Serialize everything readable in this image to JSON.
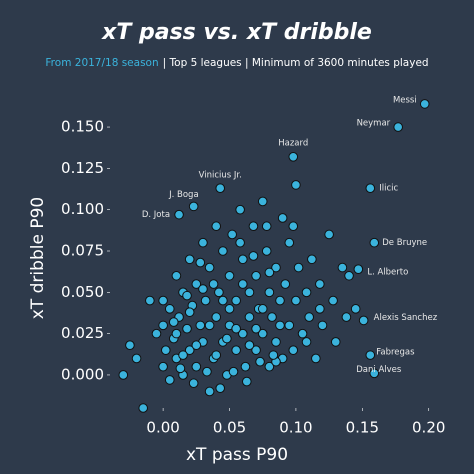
{
  "chart_data": {
    "type": "scatter",
    "title": "xT pass vs. xT dribble",
    "subtitle_highlight": "From 2017/18 season",
    "subtitle": "| Top 5 leagues | Minimum of 3600 minutes played",
    "xlabel": "xT pass P90",
    "ylabel": "xT dribble P90",
    "color": "#3bb3dc",
    "xlim": [
      -0.04,
      0.21
    ],
    "ylim": [
      -0.02,
      0.17
    ],
    "xticks": [
      {
        "value": 0,
        "label": "0.00"
      },
      {
        "value": 0.05,
        "label": "0.05"
      },
      {
        "value": 0.1,
        "label": "0.10"
      },
      {
        "value": 0.15,
        "label": "0.15"
      },
      {
        "value": 0.2,
        "label": "0.20"
      }
    ],
    "yticks": [
      {
        "value": 0,
        "label": "0.000"
      },
      {
        "value": 0.025,
        "label": "0.025"
      },
      {
        "value": 0.05,
        "label": "0.050"
      },
      {
        "value": 0.075,
        "label": "0.075"
      },
      {
        "value": 0.1,
        "label": "0.100"
      },
      {
        "value": 0.125,
        "label": "0.125"
      },
      {
        "value": 0.15,
        "label": "0.150"
      }
    ],
    "x": [
      -0.03,
      -0.025,
      -0.02,
      -0.015,
      -0.01,
      -0.005,
      0.0,
      0.0,
      0.002,
      0.005,
      0.005,
      0.008,
      0.01,
      0.01,
      0.012,
      0.015,
      0.015,
      0.018,
      0.02,
      0.02,
      0.022,
      0.025,
      0.025,
      0.028,
      0.03,
      0.03,
      0.032,
      0.035,
      0.035,
      0.038,
      0.04,
      0.04,
      0.042,
      0.045,
      0.045,
      0.048,
      0.05,
      0.05,
      0.052,
      0.055,
      0.055,
      0.058,
      0.06,
      0.06,
      0.062,
      0.065,
      0.065,
      0.068,
      0.07,
      0.07,
      0.072,
      0.075,
      0.075,
      0.078,
      0.08,
      0.08,
      0.082,
      0.085,
      0.085,
      0.088,
      0.09,
      0.09,
      0.092,
      0.095,
      0.095,
      0.098,
      0.1,
      0.1,
      0.102,
      0.105,
      0.108,
      0.11,
      0.112,
      0.115,
      0.118,
      0.12,
      0.125,
      0.128,
      0.13,
      0.135,
      0.138,
      0.14,
      0.145,
      0.0,
      0.01,
      0.02,
      0.03,
      0.04,
      0.05,
      0.06,
      0.07,
      0.08,
      0.045,
      0.035,
      0.025,
      0.015,
      0.055,
      0.065,
      0.075,
      0.085,
      0.048,
      0.038,
      0.028,
      0.018,
      0.008,
      0.058,
      0.068,
      0.078,
      0.088,
      0.098,
      0.108,
      0.118,
      0.013,
      0.023,
      0.033,
      0.043,
      0.053,
      0.063,
      0.073,
      0.083
    ],
    "y": [
      0.0,
      0.018,
      0.01,
      -0.02,
      0.045,
      0.025,
      0.005,
      0.03,
      0.015,
      0.04,
      -0.003,
      0.022,
      0.06,
      0.01,
      0.035,
      0.0,
      0.05,
      0.028,
      0.07,
      0.015,
      0.042,
      0.005,
      0.055,
      0.03,
      0.08,
      0.02,
      0.045,
      -0.01,
      0.065,
      0.01,
      0.035,
      0.09,
      0.05,
      0.02,
      0.075,
      0.0,
      0.06,
      0.03,
      0.085,
      0.015,
      0.045,
      0.1,
      0.025,
      0.07,
      0.005,
      0.05,
      0.035,
      0.09,
      0.015,
      0.06,
      0.04,
      0.105,
      0.025,
      0.075,
      0.005,
      0.05,
      0.035,
      0.065,
      0.02,
      0.045,
      0.095,
      0.01,
      0.055,
      0.03,
      0.08,
      0.015,
      0.115,
      0.045,
      0.065,
      0.025,
      0.05,
      0.035,
      0.07,
      0.01,
      0.055,
      0.03,
      0.085,
      0.045,
      0.02,
      0.065,
      0.035,
      0.06,
      0.04,
      0.045,
      0.025,
      0.038,
      0.052,
      0.012,
      0.04,
      0.055,
      0.028,
      0.062,
      0.045,
      0.03,
      0.018,
      0.012,
      0.028,
      0.018,
      0.04,
      0.008,
      0.022,
      0.055,
      0.068,
      0.048,
      0.032,
      0.08,
      0.072,
      0.09,
      0.03,
      0.09,
      0.02,
      0.04,
      0.004,
      -0.005,
      0.002,
      -0.008,
      0.002,
      -0.004,
      0.008,
      0.012
    ],
    "annotations": [
      {
        "text": "Messi",
        "x": 0.197,
        "y": 0.164
      },
      {
        "text": "Neymar",
        "x": 0.177,
        "y": 0.15
      },
      {
        "text": "Hazard",
        "x": 0.098,
        "y": 0.132
      },
      {
        "text": "Vinicius Jr.",
        "x": 0.043,
        "y": 0.113
      },
      {
        "text": "J. Boga",
        "x": 0.023,
        "y": 0.102
      },
      {
        "text": "D. Jota",
        "x": 0.012,
        "y": 0.097
      },
      {
        "text": "Ilicic",
        "x": 0.156,
        "y": 0.113
      },
      {
        "text": "De Bruyne",
        "x": 0.159,
        "y": 0.08
      },
      {
        "text": "L. Alberto",
        "x": 0.147,
        "y": 0.064
      },
      {
        "text": "Alexis Sanchez",
        "x": 0.151,
        "y": 0.033
      },
      {
        "text": "Fabregas",
        "x": 0.156,
        "y": 0.012
      },
      {
        "text": "Dani Alves",
        "x": 0.159,
        "y": 0.001
      }
    ]
  }
}
